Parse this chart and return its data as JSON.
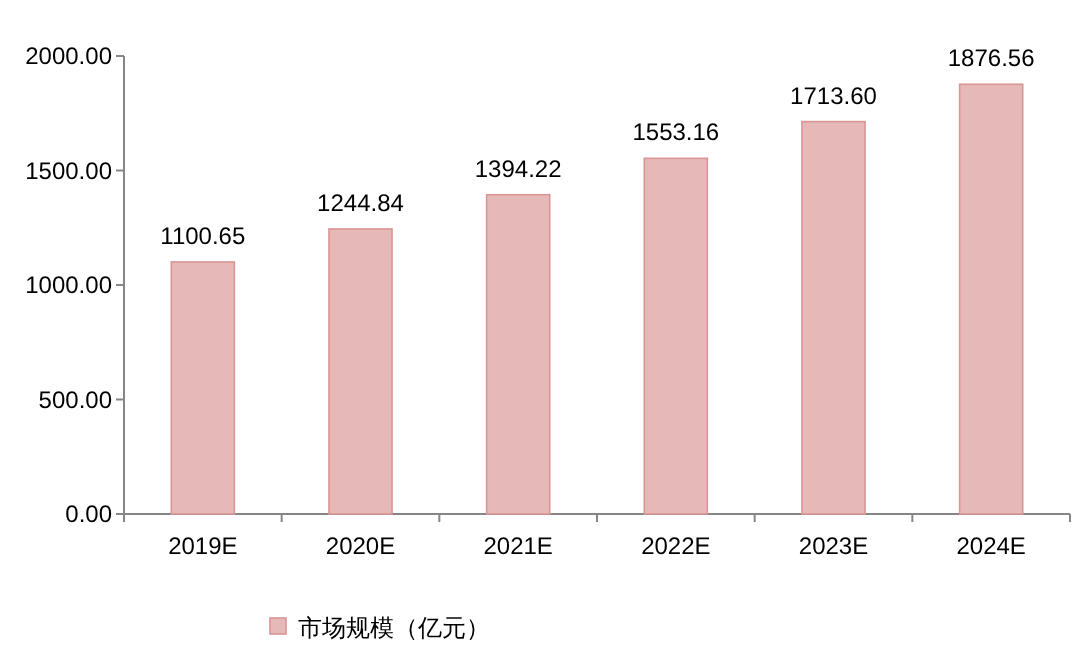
{
  "chart_data": {
    "type": "bar",
    "categories": [
      "2019E",
      "2020E",
      "2021E",
      "2022E",
      "2023E",
      "2024E"
    ],
    "series": [
      {
        "name": "市场规模（亿元）",
        "color": "#e6b8b7",
        "values": [
          1100.65,
          1244.84,
          1394.22,
          1553.16,
          1713.6,
          1876.56
        ],
        "value_labels": [
          "1100.65",
          "1244.84",
          "1394.22",
          "1553.16",
          "1713.60",
          "1876.56"
        ]
      }
    ],
    "ylim": [
      0,
      2000
    ],
    "yticks": [
      {
        "value": 0,
        "label": "0.00"
      },
      {
        "value": 500,
        "label": "500.00"
      },
      {
        "value": 1000,
        "label": "1000.00"
      },
      {
        "value": 1500,
        "label": "1500.00"
      },
      {
        "value": 2000,
        "label": "2000.00"
      }
    ],
    "grid": false,
    "legend": "bottom"
  }
}
